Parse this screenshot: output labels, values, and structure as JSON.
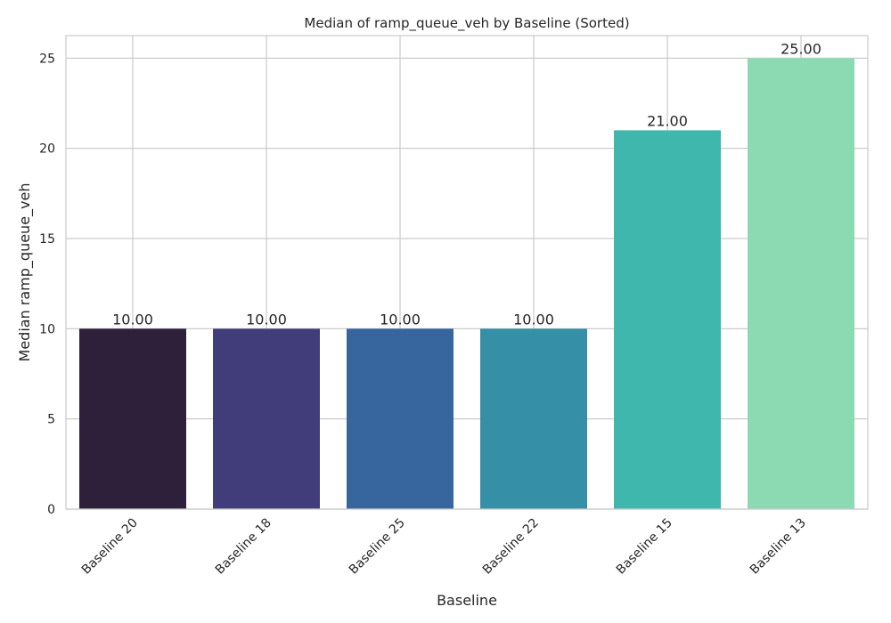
{
  "chart_data": {
    "type": "bar",
    "title": "Median of ramp_queue_veh by Baseline (Sorted)",
    "xlabel": "Baseline",
    "ylabel": "Median ramp_queue_veh",
    "categories": [
      "Baseline 20",
      "Baseline 18",
      "Baseline 25",
      "Baseline 22",
      "Baseline 15",
      "Baseline 13"
    ],
    "values": [
      10,
      10,
      10,
      10,
      21,
      25
    ],
    "data_labels": [
      "10.00",
      "10.00",
      "10.00",
      "10.00",
      "21.00",
      "25.00"
    ],
    "colors": [
      "#2e1f3b",
      "#413d7a",
      "#37659e",
      "#348fa7",
      "#40b7ad",
      "#8bdab2"
    ],
    "ylim": [
      0,
      26.25
    ],
    "yticks": [
      0,
      5,
      10,
      15,
      20,
      25
    ],
    "ytick_labels": [
      "0",
      "5",
      "10",
      "15",
      "20",
      "25"
    ],
    "grid": true
  }
}
